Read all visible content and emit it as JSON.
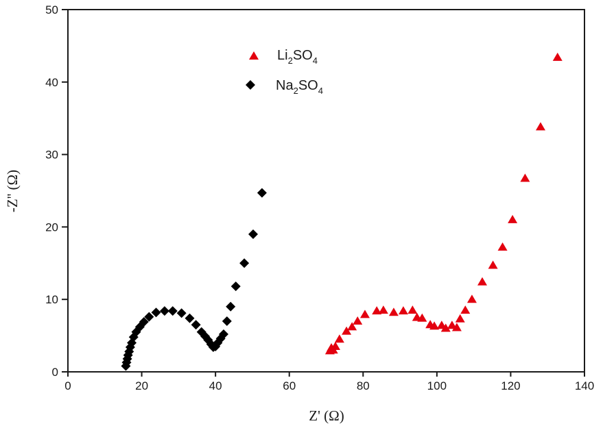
{
  "chart_data": {
    "type": "scatter",
    "title": "",
    "xlabel": "Z' (Ω)",
    "ylabel": "-Z'' (Ω)",
    "xlim": [
      0,
      140
    ],
    "ylim": [
      0,
      50
    ],
    "xticks": [
      0,
      20,
      40,
      60,
      80,
      100,
      120,
      140
    ],
    "yticks": [
      0,
      10,
      20,
      30,
      40,
      50
    ],
    "grid": false,
    "legend_position": "top-center",
    "series": [
      {
        "name": "Li2SO4",
        "legend_parts": [
          "Li",
          "2",
          "SO",
          "4"
        ],
        "marker": "triangle",
        "color": "#e3000f",
        "x": [
          71.0,
          71.4,
          71.9,
          72.5,
          73.6,
          75.5,
          77.0,
          78.5,
          80.5,
          83.7,
          85.5,
          88.3,
          90.9,
          93.4,
          94.6,
          96.0,
          98.2,
          99.3,
          101.3,
          102.4,
          104.1,
          105.4,
          106.3,
          107.7,
          109.5,
          112.3,
          115.2,
          117.8,
          120.5,
          123.9,
          128.1,
          132.7
        ],
        "y": [
          2.9,
          3.3,
          3.0,
          3.5,
          4.5,
          5.6,
          6.2,
          7.0,
          7.9,
          8.4,
          8.5,
          8.2,
          8.4,
          8.5,
          7.5,
          7.4,
          6.5,
          6.3,
          6.4,
          6.0,
          6.4,
          6.1,
          7.3,
          8.5,
          10.0,
          12.4,
          14.7,
          17.2,
          21.0,
          26.7,
          33.8,
          43.4
        ]
      },
      {
        "name": "Na2SO4",
        "legend_parts": [
          "Na",
          "2",
          "SO",
          "4"
        ],
        "marker": "diamond",
        "color": "#000000",
        "x": [
          15.7,
          15.9,
          16.1,
          16.3,
          16.6,
          16.9,
          17.3,
          17.8,
          18.5,
          19.5,
          20.6,
          22.0,
          23.9,
          26.2,
          28.4,
          30.8,
          33.0,
          34.7,
          36.2,
          37.2,
          38.0,
          38.8,
          39.4,
          40.0,
          40.6,
          41.4,
          42.2,
          43.1,
          44.1,
          45.5,
          47.8,
          50.2,
          52.6
        ],
        "y": [
          0.8,
          1.3,
          1.8,
          2.3,
          2.8,
          3.4,
          4.0,
          4.8,
          5.5,
          6.2,
          6.9,
          7.6,
          8.2,
          8.4,
          8.4,
          8.1,
          7.4,
          6.5,
          5.5,
          4.9,
          4.4,
          3.8,
          3.4,
          3.5,
          4.0,
          4.6,
          5.2,
          7.0,
          9.0,
          11.8,
          15.0,
          19.0,
          24.7
        ]
      }
    ]
  }
}
